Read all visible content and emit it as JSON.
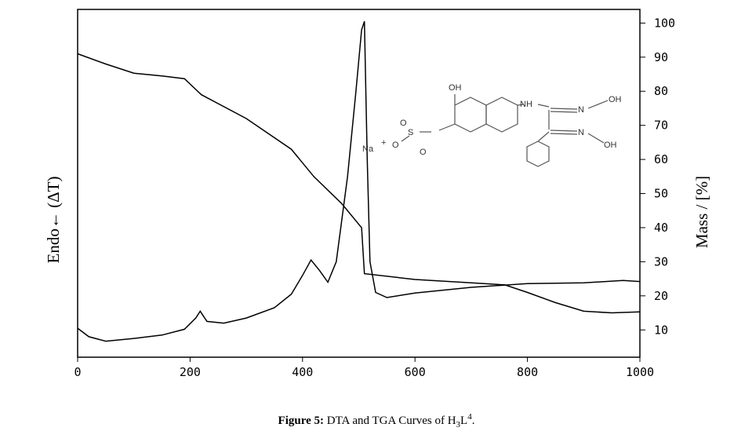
{
  "chart_data": {
    "type": "line",
    "x_axis_label": "",
    "ylabel": "Mass / [%]",
    "y_left_label": "Endo← (ΔT)",
    "xlim": [
      0,
      1000
    ],
    "xticks": [
      0,
      200,
      400,
      600,
      800,
      1000
    ],
    "ylim": [
      2,
      104
    ],
    "yticks": [
      10,
      20,
      30,
      40,
      50,
      60,
      70,
      80,
      90,
      100
    ],
    "series": [
      {
        "color": "#000000",
        "x": [
          0,
          50,
          100,
          150,
          190,
          220,
          300,
          380,
          420,
          470,
          505,
          510,
          600,
          700,
          760,
          800,
          850,
          900,
          950,
          1000
        ],
        "values": [
          91,
          88,
          85.3,
          84.5,
          83.7,
          79,
          72,
          63,
          55,
          47,
          40,
          26.5,
          24.8,
          23.8,
          23.2,
          21,
          18,
          15.5,
          15,
          15.3
        ]
      },
      {
        "color": "#000000",
        "x": [
          0,
          20,
          50,
          100,
          150,
          190,
          210,
          218,
          230,
          260,
          300,
          350,
          380,
          400,
          415,
          430,
          445,
          460,
          480,
          495,
          505,
          510,
          515,
          520,
          530,
          550,
          600,
          700,
          800,
          900,
          970,
          1000
        ],
        "values": [
          10.5,
          8,
          6.7,
          7.5,
          8.5,
          10.2,
          13.5,
          15.5,
          12.5,
          12,
          13.5,
          16.5,
          20.5,
          26,
          30.5,
          27.5,
          24,
          30,
          55,
          80,
          98,
          100.5,
          60,
          30,
          21,
          19.5,
          20.8,
          22.5,
          23.6,
          23.8,
          24.5,
          24.2
        ]
      }
    ]
  },
  "structure_labels": [
    "OH",
    "NH",
    "N",
    "OH",
    "N",
    "OH",
    "Na",
    "+",
    "O",
    "S",
    "O",
    "O"
  ],
  "caption": {
    "bold": "Figure 5:",
    "text": " DTA and TGA Curves of H",
    "sub": "3",
    "mid": "L",
    "sup": "4",
    "end": "."
  }
}
